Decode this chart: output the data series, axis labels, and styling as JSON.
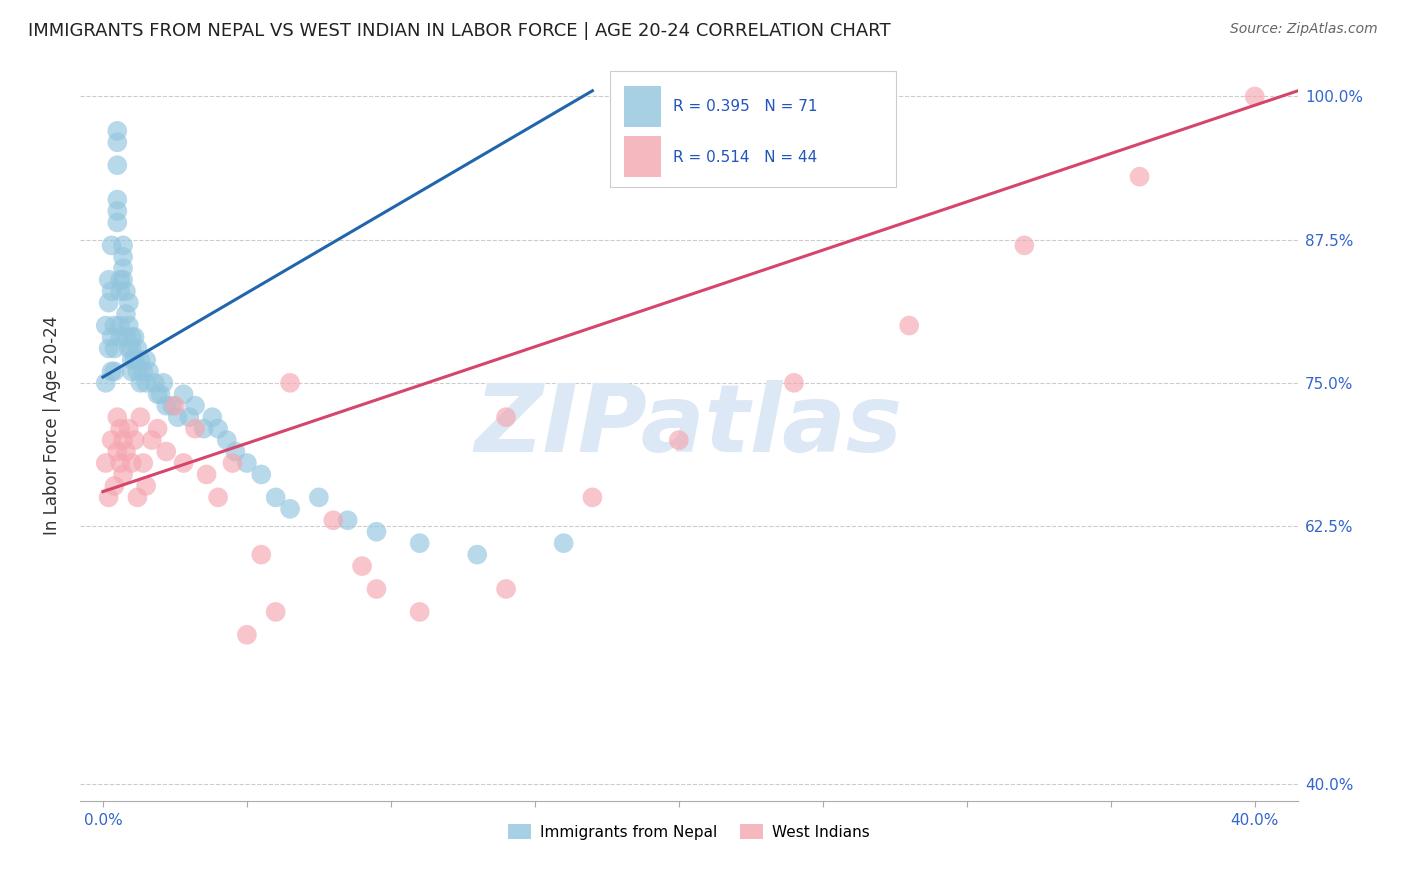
{
  "title": "IMMIGRANTS FROM NEPAL VS WEST INDIAN IN LABOR FORCE | AGE 20-24 CORRELATION CHART",
  "source": "Source: ZipAtlas.com",
  "ylabel": "In Labor Force | Age 20-24",
  "xlabel_nepal": "Immigrants from Nepal",
  "xlabel_westindian": "West Indians",
  "R_nepal": 0.395,
  "N_nepal": 71,
  "R_westindian": 0.514,
  "N_westindian": 44,
  "color_nepal": "#92c5de",
  "color_westindian": "#f4a6b0",
  "trendline_color_nepal": "#2166ac",
  "trendline_color_westindian": "#d6456b",
  "watermark_text": "ZIPatlas",
  "watermark_color": "#dce8f5",
  "nepal_x": [
    0.001,
    0.001,
    0.002,
    0.002,
    0.002,
    0.003,
    0.003,
    0.003,
    0.003,
    0.004,
    0.004,
    0.004,
    0.005,
    0.005,
    0.005,
    0.005,
    0.005,
    0.005,
    0.006,
    0.006,
    0.006,
    0.006,
    0.007,
    0.007,
    0.007,
    0.007,
    0.008,
    0.008,
    0.008,
    0.009,
    0.009,
    0.009,
    0.01,
    0.01,
    0.01,
    0.01,
    0.011,
    0.011,
    0.012,
    0.012,
    0.013,
    0.013,
    0.014,
    0.015,
    0.015,
    0.016,
    0.018,
    0.019,
    0.02,
    0.021,
    0.022,
    0.024,
    0.026,
    0.028,
    0.03,
    0.032,
    0.035,
    0.038,
    0.04,
    0.043,
    0.046,
    0.05,
    0.055,
    0.06,
    0.065,
    0.075,
    0.085,
    0.095,
    0.11,
    0.13,
    0.16
  ],
  "nepal_y": [
    0.75,
    0.8,
    0.82,
    0.84,
    0.78,
    0.76,
    0.79,
    0.83,
    0.87,
    0.76,
    0.78,
    0.8,
    0.97,
    0.96,
    0.94,
    0.91,
    0.9,
    0.89,
    0.84,
    0.83,
    0.8,
    0.79,
    0.87,
    0.86,
    0.85,
    0.84,
    0.83,
    0.81,
    0.79,
    0.82,
    0.8,
    0.78,
    0.79,
    0.78,
    0.77,
    0.76,
    0.79,
    0.77,
    0.78,
    0.76,
    0.77,
    0.75,
    0.76,
    0.77,
    0.75,
    0.76,
    0.75,
    0.74,
    0.74,
    0.75,
    0.73,
    0.73,
    0.72,
    0.74,
    0.72,
    0.73,
    0.71,
    0.72,
    0.71,
    0.7,
    0.69,
    0.68,
    0.67,
    0.65,
    0.64,
    0.65,
    0.63,
    0.62,
    0.61,
    0.6,
    0.61
  ],
  "westindian_x": [
    0.001,
    0.002,
    0.003,
    0.004,
    0.005,
    0.005,
    0.006,
    0.006,
    0.007,
    0.007,
    0.008,
    0.009,
    0.01,
    0.011,
    0.012,
    0.013,
    0.014,
    0.015,
    0.017,
    0.019,
    0.022,
    0.025,
    0.028,
    0.032,
    0.036,
    0.04,
    0.045,
    0.055,
    0.065,
    0.08,
    0.095,
    0.11,
    0.14,
    0.17,
    0.2,
    0.24,
    0.28,
    0.32,
    0.36,
    0.4,
    0.14,
    0.09,
    0.06,
    0.05
  ],
  "westindian_y": [
    0.68,
    0.65,
    0.7,
    0.66,
    0.72,
    0.69,
    0.68,
    0.71,
    0.7,
    0.67,
    0.69,
    0.71,
    0.68,
    0.7,
    0.65,
    0.72,
    0.68,
    0.66,
    0.7,
    0.71,
    0.69,
    0.73,
    0.68,
    0.71,
    0.67,
    0.65,
    0.68,
    0.6,
    0.75,
    0.63,
    0.57,
    0.55,
    0.72,
    0.65,
    0.7,
    0.75,
    0.8,
    0.87,
    0.93,
    1.0,
    0.57,
    0.59,
    0.55,
    0.53
  ],
  "xlim": [
    -0.008,
    0.415
  ],
  "ylim": [
    0.385,
    1.04
  ],
  "y_tick_positions": [
    0.4,
    0.625,
    0.75,
    0.875,
    1.0
  ],
  "y_tick_labels": [
    "40.0%",
    "62.5%",
    "75.0%",
    "87.5%",
    "100.0%"
  ],
  "x_tick_positions": [
    0.0,
    0.05,
    0.1,
    0.15,
    0.2,
    0.25,
    0.3,
    0.35,
    0.4
  ],
  "x_tick_labels": [
    "0.0%",
    "",
    "",
    "",
    "",
    "",
    "",
    "",
    "40.0%"
  ],
  "nepal_trendline_x0": 0.0,
  "nepal_trendline_x1": 0.17,
  "nepal_trendline_y0": 0.755,
  "nepal_trendline_y1": 1.005,
  "wi_trendline_x0": 0.0,
  "wi_trendline_x1": 0.415,
  "wi_trendline_y0": 0.655,
  "wi_trendline_y1": 1.005
}
